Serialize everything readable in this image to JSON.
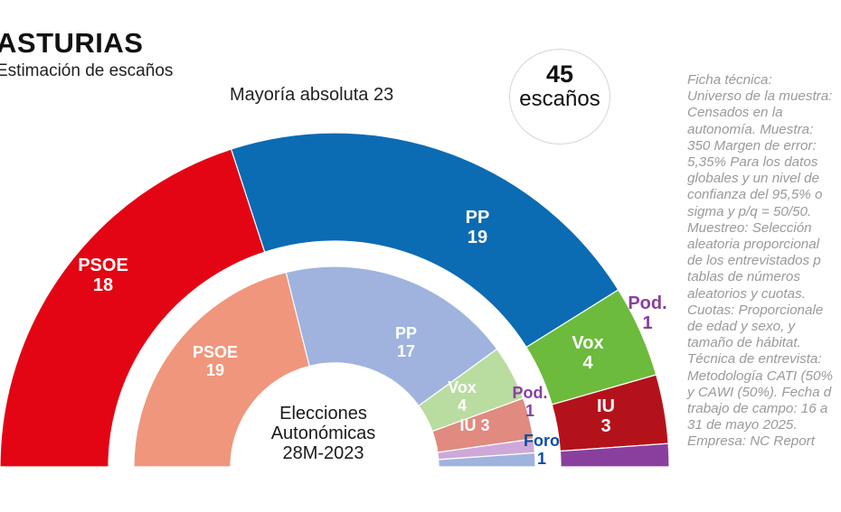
{
  "header": {
    "title": "ASTURIAS",
    "subtitle": "Estimación de escaños"
  },
  "majority_label": "Mayoría absoluta 23",
  "seats_badge": {
    "number": "45",
    "label": "escaños"
  },
  "ficha_tecnica": "Ficha técnica:\nUniverso de la muestra:\nCensados en la\nautonomía. Muestra:\n350 Margen de error:\n5,35% Para los datos\nglobales y un nivel de\nconfianza del 95,5% o\nsigma y p/q = 50/50.\nMuestreo: Selección\naleatoria proporcional\nde los entrevistados p\ntablas de números\naleatorios y cuotas.\nCuotas: Proporcionale\nde edad y sexo, y\ntamaño de hábitat.\nTécnica de entrevista:\nMetodología CATI (50%\ny CAWI (50%). Fecha d\ntrabajo de campo: 16 a\n31 de mayo 2025.\nEmpresa: NC Report",
  "inner_label": [
    "Elecciones",
    "Autonómicas",
    "28M-2023"
  ],
  "chart_data": [
    {
      "type": "parliament-semicircle",
      "name": "Estimación de escaños",
      "total_seats": 45,
      "majority": 23,
      "series": [
        {
          "party": "PSOE",
          "seats": 18,
          "color": "#e30513",
          "label_color": "#ffffff"
        },
        {
          "party": "PP",
          "seats": 19,
          "color": "#0b6bb3",
          "label_color": "#ffffff"
        },
        {
          "party": "Vox",
          "seats": 4,
          "color": "#6cbb3c",
          "label_color": "#ffffff"
        },
        {
          "party": "IU",
          "seats": 3,
          "color": "#b4121b",
          "label_color": "#ffffff"
        },
        {
          "party": "Pod.",
          "seats": 1,
          "color": "#8a3f9e",
          "label_color": "#8a3f9e"
        }
      ]
    },
    {
      "type": "parliament-semicircle",
      "name": "Elecciones Autonómicas 28M-2023",
      "total_seats": 45,
      "series": [
        {
          "party": "PSOE",
          "seats": 19,
          "color": "#f0967c",
          "label_color": "#ffffff"
        },
        {
          "party": "PP",
          "seats": 17,
          "color": "#9fb3de",
          "label_color": "#ffffff"
        },
        {
          "party": "Vox",
          "seats": 4,
          "color": "#b9dca0",
          "label_color": "#ffffff"
        },
        {
          "party": "IU",
          "seats": 3,
          "color": "#e08a80",
          "label_color": "#ffffff"
        },
        {
          "party": "Pod.",
          "seats": 1,
          "color": "#cfa8da",
          "label_color": "#8a3f9e"
        },
        {
          "party": "Foro",
          "seats": 1,
          "color": "#9fb3de",
          "label_color": "#0b4f9e"
        }
      ]
    }
  ]
}
